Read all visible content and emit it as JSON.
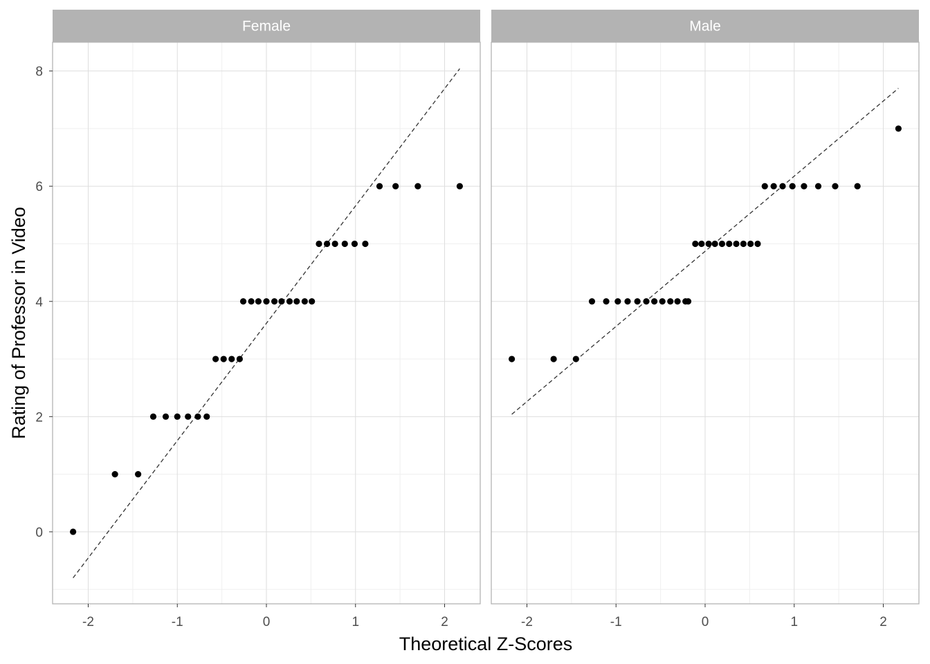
{
  "chart_data": {
    "type": "scatter",
    "subtype": "faceted-qq-plot",
    "xlabel": "Theoretical Z-Scores",
    "ylabel": "Rating of Professor in Video",
    "xlim": [
      -2.4,
      2.4
    ],
    "ylim": [
      -1.25,
      8.5
    ],
    "x_ticks": [
      -2,
      -1,
      0,
      1,
      2
    ],
    "y_ticks": [
      0,
      2,
      4,
      6,
      8
    ],
    "grid": true,
    "colors": {
      "strip_bg": "#b3b3b3",
      "panel_border": "#b3b3b3",
      "grid_major": "#dedede",
      "grid_minor": "#efefef",
      "point": "#000000",
      "ref_line": "#333333"
    },
    "panels": [
      {
        "label": "Female",
        "points": [
          {
            "x": -2.17,
            "y": 0
          },
          {
            "x": -1.7,
            "y": 1
          },
          {
            "x": -1.44,
            "y": 1
          },
          {
            "x": -1.27,
            "y": 2
          },
          {
            "x": -1.13,
            "y": 2
          },
          {
            "x": -1.0,
            "y": 2
          },
          {
            "x": -0.88,
            "y": 2
          },
          {
            "x": -0.77,
            "y": 2
          },
          {
            "x": -0.67,
            "y": 2
          },
          {
            "x": -0.57,
            "y": 3
          },
          {
            "x": -0.48,
            "y": 3
          },
          {
            "x": -0.39,
            "y": 3
          },
          {
            "x": -0.3,
            "y": 3
          },
          {
            "x": -0.26,
            "y": 4
          },
          {
            "x": -0.17,
            "y": 4
          },
          {
            "x": -0.09,
            "y": 4
          },
          {
            "x": 0.0,
            "y": 4
          },
          {
            "x": 0.09,
            "y": 4
          },
          {
            "x": 0.17,
            "y": 4
          },
          {
            "x": 0.26,
            "y": 4
          },
          {
            "x": 0.34,
            "y": 4
          },
          {
            "x": 0.43,
            "y": 4
          },
          {
            "x": 0.51,
            "y": 4
          },
          {
            "x": 0.59,
            "y": 5
          },
          {
            "x": 0.68,
            "y": 5
          },
          {
            "x": 0.77,
            "y": 5
          },
          {
            "x": 0.88,
            "y": 5
          },
          {
            "x": 0.99,
            "y": 5
          },
          {
            "x": 1.11,
            "y": 5
          },
          {
            "x": 1.27,
            "y": 6
          },
          {
            "x": 1.45,
            "y": 6
          },
          {
            "x": 1.7,
            "y": 6
          },
          {
            "x": 2.17,
            "y": 6
          }
        ],
        "ref_line": {
          "x": [
            -2.17,
            2.17
          ],
          "y": [
            -0.8,
            8.04
          ]
        }
      },
      {
        "label": "Male",
        "points": [
          {
            "x": -2.17,
            "y": 3
          },
          {
            "x": -1.7,
            "y": 3
          },
          {
            "x": -1.45,
            "y": 3
          },
          {
            "x": -1.27,
            "y": 4
          },
          {
            "x": -1.11,
            "y": 4
          },
          {
            "x": -0.98,
            "y": 4
          },
          {
            "x": -0.87,
            "y": 4
          },
          {
            "x": -0.76,
            "y": 4
          },
          {
            "x": -0.66,
            "y": 4
          },
          {
            "x": -0.57,
            "y": 4
          },
          {
            "x": -0.48,
            "y": 4
          },
          {
            "x": -0.39,
            "y": 4
          },
          {
            "x": -0.31,
            "y": 4
          },
          {
            "x": -0.22,
            "y": 4
          },
          {
            "x": -0.19,
            "y": 4
          },
          {
            "x": -0.11,
            "y": 5
          },
          {
            "x": -0.04,
            "y": 5
          },
          {
            "x": 0.04,
            "y": 5
          },
          {
            "x": 0.11,
            "y": 5
          },
          {
            "x": 0.19,
            "y": 5
          },
          {
            "x": 0.27,
            "y": 5
          },
          {
            "x": 0.35,
            "y": 5
          },
          {
            "x": 0.43,
            "y": 5
          },
          {
            "x": 0.51,
            "y": 5
          },
          {
            "x": 0.59,
            "y": 5
          },
          {
            "x": 0.67,
            "y": 6
          },
          {
            "x": 0.77,
            "y": 6
          },
          {
            "x": 0.87,
            "y": 6
          },
          {
            "x": 0.98,
            "y": 6
          },
          {
            "x": 1.11,
            "y": 6
          },
          {
            "x": 1.27,
            "y": 6
          },
          {
            "x": 1.46,
            "y": 6
          },
          {
            "x": 1.71,
            "y": 6
          },
          {
            "x": 2.17,
            "y": 7
          }
        ],
        "ref_line": {
          "x": [
            -2.17,
            2.17
          ],
          "y": [
            2.04,
            7.7
          ]
        }
      }
    ]
  }
}
